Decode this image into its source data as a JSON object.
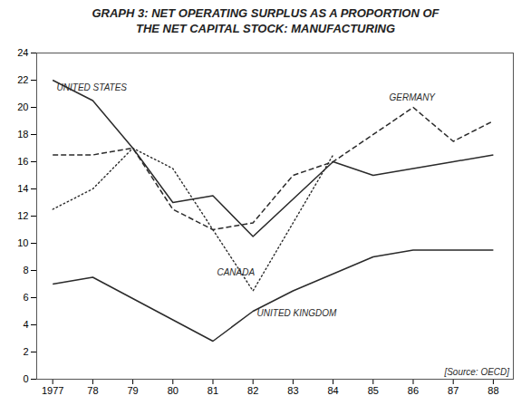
{
  "chart_data": {
    "type": "line",
    "title": "GRAPH 3: NET OPERATING SURPLUS AS A PROPORTION OF\nTHE NET CAPITAL STOCK: MANUFACTURING",
    "series": [
      {
        "name": "UNITED STATES",
        "color": "#2a2a2a",
        "line_style": "solid",
        "x": [
          1977,
          1978,
          1979,
          1980,
          1981,
          1982,
          1984,
          1985,
          1986,
          1987,
          1988
        ],
        "values": [
          22,
          20.5,
          17,
          13,
          13.5,
          10.5,
          16,
          15,
          15.5,
          16,
          16.5
        ]
      },
      {
        "name": "GERMANY",
        "color": "#2a2a2a",
        "line_style": "dashed",
        "x": [
          1977,
          1978,
          1979,
          1980,
          1981,
          1982,
          1983,
          1984,
          1986,
          1987,
          1988
        ],
        "values": [
          16.5,
          16.5,
          17,
          12.5,
          11,
          11.5,
          15,
          16,
          20,
          17.5,
          19
        ]
      },
      {
        "name": "CANADA",
        "color": "#2a2a2a",
        "line_style": "dotted",
        "x": [
          1977,
          1978,
          1979,
          1980,
          1982,
          1984
        ],
        "values": [
          12.5,
          14,
          17,
          15.5,
          6.5,
          16.5
        ]
      },
      {
        "name": "UNITED KINGDOM",
        "color": "#2a2a2a",
        "line_style": "solid",
        "x": [
          1977,
          1978,
          1981,
          1982,
          1983,
          1985,
          1986,
          1987,
          1988
        ],
        "values": [
          7,
          7.5,
          2.8,
          5.0,
          6.5,
          9.0,
          9.5,
          9.5,
          9.5
        ]
      }
    ],
    "annotations": [
      {
        "text": "UNITED STATES",
        "x": 1977.1,
        "y": 21.7
      },
      {
        "text": "GERMANY",
        "x": 1985.4,
        "y": 20.5
      },
      {
        "text": "CANADA",
        "x": 1981.1,
        "y": 8.1
      },
      {
        "text": "UNITED KINGDOM",
        "x": 1982.1,
        "y": 5.1
      },
      {
        "text": "[Source: OECD]",
        "x": 1988.4,
        "y": 0.3
      }
    ],
    "xlim": [
      1976.6,
      1988.5
    ],
    "xticks": [
      1977,
      {
        "value": 1978,
        "label": "78"
      },
      {
        "value": 1979,
        "label": "79"
      },
      {
        "value": 1980,
        "label": "80"
      },
      {
        "value": 1981,
        "label": "81"
      },
      {
        "value": 1982,
        "label": "82"
      },
      {
        "value": 1983,
        "label": "83"
      },
      {
        "value": 1984,
        "label": "84"
      },
      {
        "value": 1985,
        "label": "85"
      },
      {
        "value": 1986,
        "label": "86"
      },
      {
        "value": 1987,
        "label": "87"
      },
      {
        "value": 1988,
        "label": "88"
      }
    ],
    "ylim": [
      0,
      24
    ],
    "yticks": [
      0,
      2,
      4,
      6,
      8,
      10,
      12,
      14,
      16,
      18,
      20,
      22,
      24
    ],
    "grid": false
  }
}
